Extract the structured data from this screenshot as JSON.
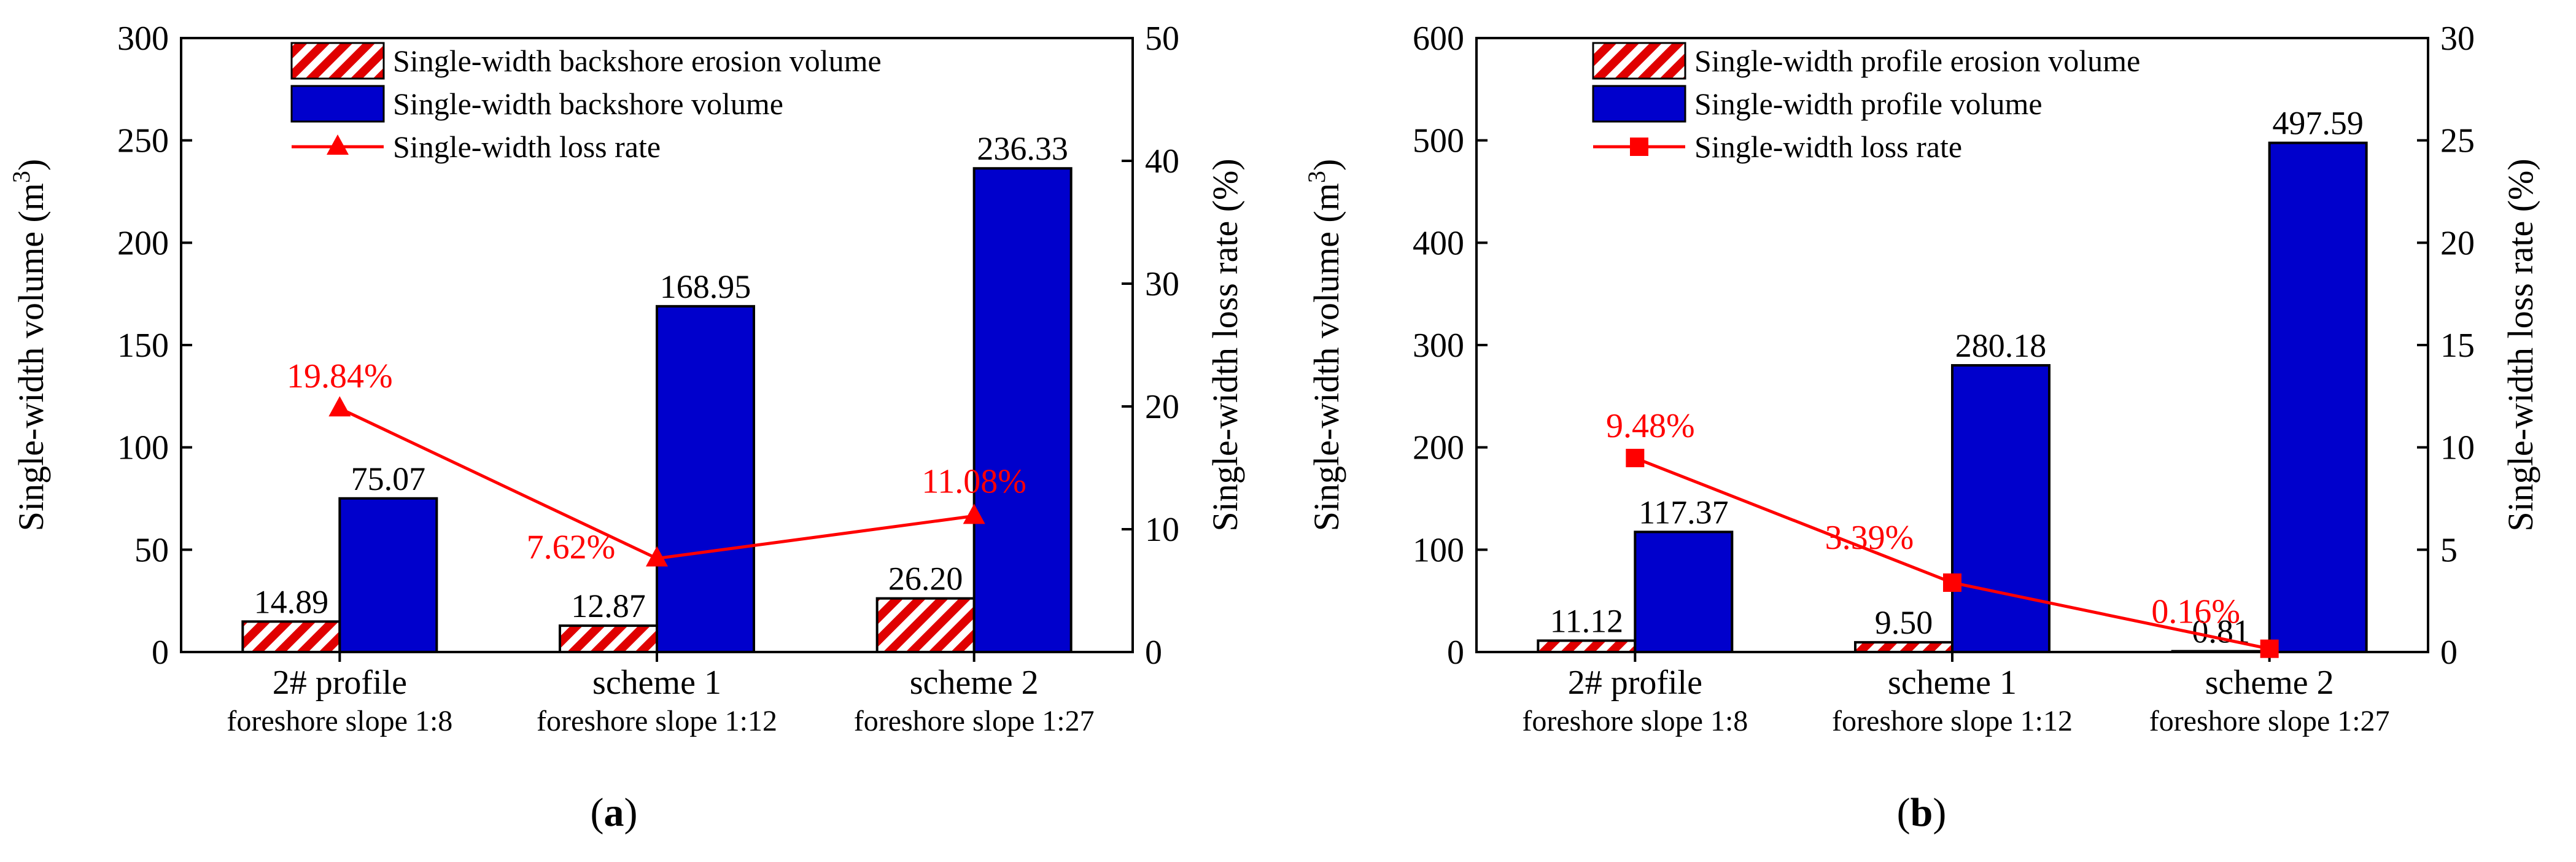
{
  "colors": {
    "erosion": "#e00000",
    "volume": "#0000cc",
    "rate": "#ff0000",
    "axis": "#000000"
  },
  "chart_data": [
    {
      "type": "bar",
      "panel_label": "a",
      "categories": [
        "2# profile",
        "scheme 1",
        "scheme 2"
      ],
      "category_sublabels": [
        "foreshore slope 1:8",
        "foreshore slope 1:12",
        "foreshore slope 1:27"
      ],
      "ylabel_main": "Single-width volume (m",
      "ylabel_sup": "3",
      "ylabel_close": ")",
      "y2label": "Single-width loss rate (%)",
      "ylim": [
        0,
        300
      ],
      "yticks": [
        0,
        50,
        100,
        150,
        200,
        250,
        300
      ],
      "y2lim": [
        0,
        50
      ],
      "y2ticks": [
        0,
        10,
        20,
        30,
        40,
        50
      ],
      "series": [
        {
          "name": "Single-width backshore erosion volume",
          "kind": "bar",
          "pattern": "hatch",
          "values": [
            14.89,
            12.87,
            26.2
          ],
          "labels": [
            "14.89",
            "12.87",
            "26.20"
          ]
        },
        {
          "name": "Single-width backshore volume",
          "kind": "bar",
          "pattern": "solid",
          "values": [
            75.07,
            168.95,
            236.33
          ],
          "labels": [
            "75.07",
            "168.95",
            "236.33"
          ]
        },
        {
          "name": "Single-width loss rate",
          "kind": "line",
          "marker": "triangle",
          "axis": "right",
          "values": [
            19.84,
            7.62,
            11.08
          ],
          "labels": [
            "19.84%",
            "7.62%",
            "11.08%"
          ]
        }
      ]
    },
    {
      "type": "bar",
      "panel_label": "b",
      "categories": [
        "2# profile",
        "scheme 1",
        "scheme 2"
      ],
      "category_sublabels": [
        "foreshore slope 1:8",
        "foreshore slope 1:12",
        "foreshore slope 1:27"
      ],
      "ylabel_main": "Single-width volume (m",
      "ylabel_sup": "3",
      "ylabel_close": ")",
      "y2label": "Single-width loss rate (%)",
      "ylim": [
        0,
        600
      ],
      "yticks": [
        0,
        100,
        200,
        300,
        400,
        500,
        600
      ],
      "y2lim": [
        0,
        30
      ],
      "y2ticks": [
        0,
        5,
        10,
        15,
        20,
        25,
        30
      ],
      "series": [
        {
          "name": "Single-width profile erosion volume",
          "kind": "bar",
          "pattern": "hatch",
          "values": [
            11.12,
            9.5,
            0.81
          ],
          "labels": [
            "11.12",
            "9.50",
            "0.81"
          ]
        },
        {
          "name": "Single-width profile volume",
          "kind": "bar",
          "pattern": "solid",
          "values": [
            117.37,
            280.18,
            497.59
          ],
          "labels": [
            "117.37",
            "280.18",
            "497.59"
          ]
        },
        {
          "name": "Single-width loss rate",
          "kind": "line",
          "marker": "square",
          "axis": "right",
          "values": [
            9.48,
            3.39,
            0.16
          ],
          "labels": [
            "9.48%",
            "3.39%",
            "0.16%"
          ]
        }
      ]
    }
  ]
}
